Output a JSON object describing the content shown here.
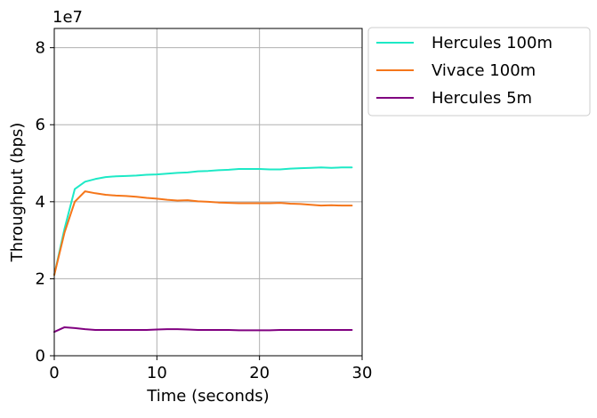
{
  "chart_data": {
    "type": "line",
    "xlabel": "Time (seconds)",
    "ylabel": "Throughput (bps)",
    "y_offset_label": "1e7",
    "xlim": [
      0,
      30
    ],
    "ylim": [
      0,
      85000000
    ],
    "x_ticks": [
      0,
      10,
      20,
      30
    ],
    "x_tick_labels": [
      "0",
      "10",
      "20",
      "30"
    ],
    "y_ticks": [
      0,
      20000000,
      40000000,
      60000000,
      80000000
    ],
    "y_tick_labels": [
      "0",
      "2",
      "4",
      "6",
      "8"
    ],
    "grid": true,
    "legend_position": "outside top-right",
    "x": [
      0,
      1,
      2,
      3,
      4,
      5,
      6,
      7,
      8,
      9,
      10,
      11,
      12,
      13,
      14,
      15,
      16,
      17,
      18,
      19,
      20,
      21,
      22,
      23,
      24,
      25,
      26,
      27,
      28,
      29
    ],
    "series": [
      {
        "name": "Hercules 100m",
        "color": "#1de9c6",
        "values": [
          21000000,
          33000000,
          43300000,
          45200000,
          45900000,
          46400000,
          46600000,
          46700000,
          46800000,
          47000000,
          47100000,
          47300000,
          47500000,
          47600000,
          47900000,
          48000000,
          48200000,
          48300000,
          48500000,
          48500000,
          48500000,
          48400000,
          48400000,
          48600000,
          48700000,
          48800000,
          48900000,
          48800000,
          48900000,
          48900000
        ]
      },
      {
        "name": "Vivace 100m",
        "color": "#f5761a",
        "values": [
          21000000,
          32000000,
          40000000,
          42700000,
          42200000,
          41800000,
          41600000,
          41500000,
          41300000,
          41000000,
          40800000,
          40500000,
          40300000,
          40400000,
          40100000,
          40000000,
          39800000,
          39700000,
          39600000,
          39600000,
          39600000,
          39600000,
          39700000,
          39500000,
          39400000,
          39200000,
          39000000,
          39100000,
          39000000,
          39000000
        ]
      },
      {
        "name": "Hercules 5m",
        "color": "#800080",
        "values": [
          6200000,
          7400000,
          7200000,
          6900000,
          6700000,
          6700000,
          6700000,
          6700000,
          6700000,
          6700000,
          6800000,
          6900000,
          6900000,
          6800000,
          6700000,
          6700000,
          6700000,
          6700000,
          6600000,
          6600000,
          6600000,
          6600000,
          6700000,
          6700000,
          6700000,
          6700000,
          6700000,
          6700000,
          6700000,
          6700000
        ]
      }
    ]
  }
}
